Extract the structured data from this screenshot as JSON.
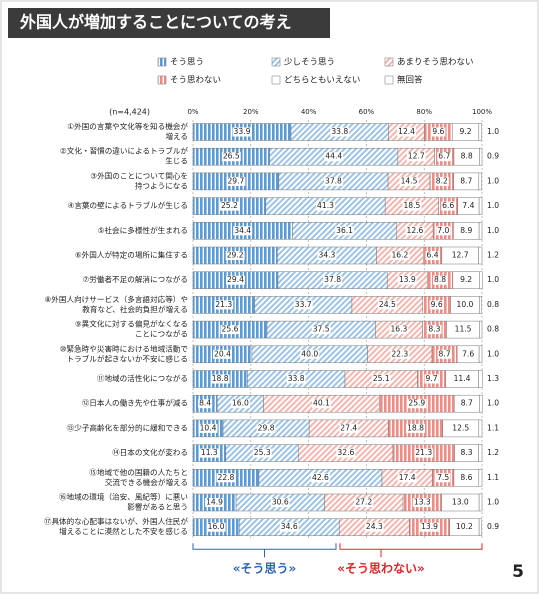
{
  "chart_data": {
    "type": "stacked_bar_horizontal",
    "title": "外国人が増加することについての考え",
    "sample_size": "(n=4,424)",
    "categories": [
      [
        "①外国の言葉や文化等を知る機会が",
        "増える"
      ],
      [
        "②文化・習慣の違いによるトラブルが",
        "生じる"
      ],
      [
        "③外国のことについて関心を",
        "持つようになる"
      ],
      [
        "④言葉の壁によるトラブルが生じる"
      ],
      [
        "⑤社会に多様性が生まれる"
      ],
      [
        "⑥外国人が特定の場所に集住する"
      ],
      [
        "⑦労働者不足の解消につながる"
      ],
      [
        "⑧外国人向けサービス（多言語対応等）や",
        "教育など、社会的負担が増える"
      ],
      [
        "⑨異文化に対する偏見がなくなる",
        "ことにつながる"
      ],
      [
        "⑩緊急時や災害時における地域活動で",
        "トラブルが起きないか不安に感じる"
      ],
      [
        "⑪地域の活性化につながる"
      ],
      [
        "⑫日本人の働き先や仕事が減る"
      ],
      [
        "⑬少子高齢化を部分的に緩和できる"
      ],
      [
        "⑭日本の文化が変わる"
      ],
      [
        "⑮地域で他の国籍の人たちと",
        "交流できる機会が増える"
      ],
      [
        "⑯地域の環境（治安、風紀等）に悪い",
        "影響があると思う"
      ],
      [
        "⑰具体的な心配事はないが、外国人住民が",
        "増えることに漠然とした不安を感じる"
      ]
    ],
    "series": [
      {
        "name": "そう思う",
        "color": "#5b9bd5",
        "values": [
          33.9,
          26.5,
          29.7,
          25.2,
          34.4,
          29.2,
          29.4,
          21.3,
          25.6,
          20.4,
          18.8,
          8.4,
          10.4,
          11.3,
          22.8,
          14.9,
          16.0
        ],
        "value_labels": [
          "33.9",
          "26.5",
          "29.7",
          "25.2",
          "34.4",
          "29.2",
          "29.4",
          "21.3",
          "25.6",
          "20.4",
          "18.8",
          "8.4",
          "10.4",
          "11.3",
          "22.8",
          "14.9",
          "16.0"
        ]
      },
      {
        "name": "少しそう思う",
        "color": "#9dc3e6",
        "values": [
          33.8,
          44.4,
          37.8,
          41.3,
          36.1,
          34.3,
          37.8,
          33.7,
          37.5,
          40.0,
          33.8,
          16.0,
          29.8,
          25.3,
          42.6,
          30.6,
          34.6
        ],
        "value_labels": [
          "33.8",
          "44.4",
          "37.8",
          "41.3",
          "36.1",
          "34.3",
          "37.8",
          "33.7",
          "37.5",
          "40.0",
          "33.8",
          "16.0",
          "29.8",
          "25.3",
          "42.6",
          "30.6",
          "34.6"
        ]
      },
      {
        "name": "あまりそう思わない",
        "color": "#f4b6ae",
        "values": [
          12.4,
          12.7,
          14.5,
          18.5,
          12.6,
          16.2,
          13.9,
          24.5,
          16.3,
          22.3,
          25.1,
          40.1,
          27.4,
          32.6,
          17.4,
          27.2,
          24.3
        ],
        "value_labels": [
          "12.4",
          "12.7",
          "14.5",
          "18.5",
          "12.6",
          "16.2",
          "13.9",
          "24.5",
          "16.3",
          "22.3",
          "25.1",
          "40.1",
          "27.4",
          "32.6",
          "17.4",
          "27.2",
          "24.3"
        ]
      },
      {
        "name": "そう思わない",
        "color": "#ef8c84",
        "values": [
          9.6,
          6.7,
          8.2,
          6.6,
          7.0,
          6.4,
          8.8,
          9.6,
          8.3,
          8.7,
          9.7,
          25.9,
          18.8,
          21.3,
          7.5,
          13.3,
          13.9
        ],
        "value_labels": [
          "9.6",
          "6.7",
          "8.2",
          "6.6",
          "7.0",
          "6.4",
          "8.8",
          "9.6",
          "8.3",
          "8.7",
          "9.7",
          "25.9",
          "18.8",
          "21.3",
          "7.5",
          "13.3",
          "13.9"
        ]
      },
      {
        "name": "どちらともいえない",
        "color": "#ffffff",
        "values": [
          9.2,
          8.8,
          8.7,
          7.4,
          8.9,
          12.7,
          9.2,
          10.0,
          11.5,
          7.6,
          11.4,
          8.7,
          12.5,
          8.3,
          8.6,
          13.0,
          10.2
        ],
        "value_labels": [
          "9.2",
          "8.8",
          "8.7",
          "7.4",
          "8.9",
          "12.7",
          "9.2",
          "10.0",
          "11.5",
          "7.6",
          "11.4",
          "8.7",
          "12.5",
          "8.3",
          "8.6",
          "13.0",
          "10.2"
        ]
      },
      {
        "name": "無回答",
        "color": "#ffffff",
        "values": [
          1.0,
          0.9,
          1.0,
          1.0,
          1.0,
          1.2,
          1.0,
          0.8,
          0.8,
          1.0,
          1.3,
          1.0,
          1.1,
          1.2,
          1.1,
          1.0,
          0.9
        ],
        "value_labels": [
          "1.0",
          "0.9",
          "1.0",
          "1.0",
          "1.0",
          "1.2",
          "1.0",
          "0.8",
          "0.8",
          "1.0",
          "1.3",
          "1.0",
          "1.1",
          "1.2",
          "1.1",
          "1.0",
          "0.9"
        ]
      }
    ],
    "xlim": [
      0,
      100
    ],
    "xticks": [
      {
        "value": 0,
        "label": "0%"
      },
      {
        "value": 20,
        "label": "20%"
      },
      {
        "value": 40,
        "label": "40%"
      },
      {
        "value": 60,
        "label": "60%"
      },
      {
        "value": 80,
        "label": "80%"
      },
      {
        "value": 100,
        "label": "100%"
      }
    ],
    "grid": true,
    "annotations": [
      {
        "text": "«そう思う»",
        "color": "#2e64b4"
      },
      {
        "text": "«そう思わない»",
        "color": "#e0262a"
      }
    ],
    "page_number": "5"
  }
}
